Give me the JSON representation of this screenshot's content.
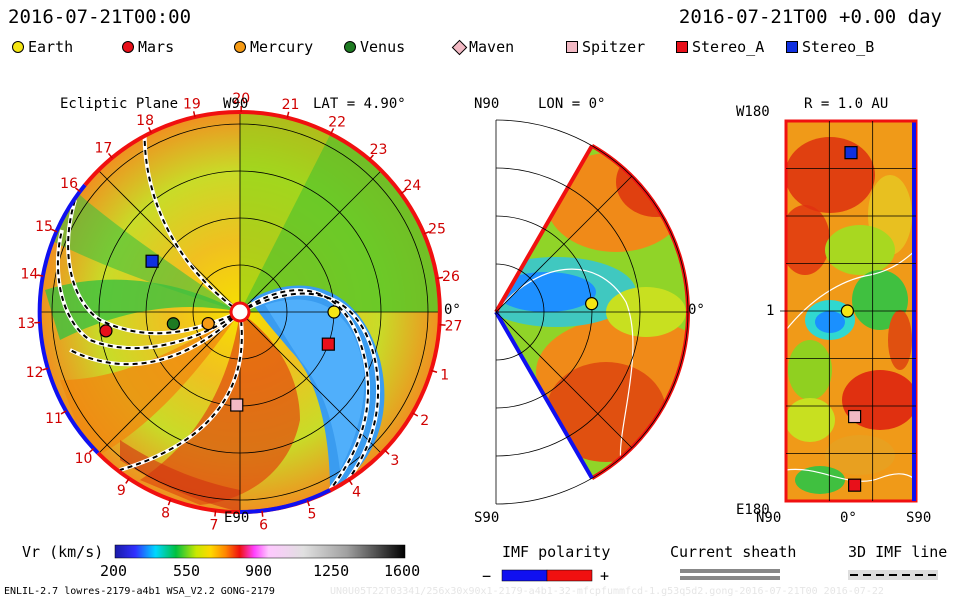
{
  "header": {
    "left_time": "2016-07-21T00:00",
    "right_time": "2016-07-21T00 +0.00 day"
  },
  "legend": [
    {
      "name": "Earth",
      "shape": "circle",
      "color": "#f5e614"
    },
    {
      "name": "Mars",
      "shape": "circle",
      "color": "#e8101a"
    },
    {
      "name": "Mercury",
      "shape": "circle",
      "color": "#f59a14"
    },
    {
      "name": "Venus",
      "shape": "circle",
      "color": "#1e7a22"
    },
    {
      "name": "Maven",
      "shape": "diamond",
      "color": "#f2b9c4"
    },
    {
      "name": "Spitzer",
      "shape": "square",
      "color": "#f2b9c4"
    },
    {
      "name": "Stereo_A",
      "shape": "square",
      "color": "#e8101a"
    },
    {
      "name": "Stereo_B",
      "shape": "square",
      "color": "#1030e0"
    }
  ],
  "panels": {
    "ecliptic": {
      "title": "Ecliptic Plane",
      "top_label": "W90",
      "bottom_label": "E90",
      "right_label": "0°",
      "lat_label": "LAT = 4.90°",
      "carrington_labels": [
        "19",
        "20",
        "21",
        "22",
        "23",
        "24",
        "25",
        "26",
        "27",
        "1",
        "2",
        "3",
        "4",
        "5",
        "6",
        "7",
        "8",
        "9",
        "10",
        "11",
        "12",
        "13",
        "14",
        "15",
        "16",
        "17",
        "18"
      ]
    },
    "meridional": {
      "top_label": "N90",
      "bottom_label": "S90",
      "right_label": "0°",
      "lon_label": "LON = 0°"
    },
    "map": {
      "r_label": "R = 1.0 AU",
      "top_left": "W180",
      "bottom_left": "E180",
      "left_mid": "1",
      "bottom_labels": [
        "N90",
        "0°",
        "S90"
      ]
    }
  },
  "colorbar": {
    "label": "Vr (km/s)",
    "ticks": [
      "200",
      "550",
      "900",
      "1250",
      "1600"
    ]
  },
  "imf": {
    "label": "IMF polarity",
    "minus": "−",
    "plus": "+",
    "neg_color": "#1010f0",
    "pos_color": "#f01010"
  },
  "current_sheath": {
    "label": "Current sheath"
  },
  "imf_line": {
    "label": "3D IMF line"
  },
  "footer": {
    "left": "ENLIL-2.7 lowres-2179-a4b1 WSA_V2.2 GONG-2179",
    "right": "UN0U05T22T03341/256x30x90x1-2179-a4b1-32-mfcpfummfcd-1.g53q5d2.gong-2016-07-21T00 2016-07-22"
  },
  "chart_data": [
    {
      "type": "polar-contour",
      "title": "Ecliptic Plane",
      "variable": "Vr (km/s)",
      "range": [
        200,
        1600
      ],
      "radial_rings_au": [
        0.5,
        1.0,
        1.5,
        2.0
      ],
      "bodies": [
        {
          "name": "Earth",
          "r_au": 1.0,
          "lon_deg": 0
        },
        {
          "name": "Stereo_A",
          "r_au": 1.0,
          "lon_deg": -20
        },
        {
          "name": "Stereo_B",
          "r_au": 1.08,
          "lon_deg": 150
        },
        {
          "name": "Mars",
          "r_au": 1.44,
          "lon_deg": 188
        },
        {
          "name": "Venus",
          "r_au": 0.72,
          "lon_deg": 190
        },
        {
          "name": "Mercury",
          "r_au": 0.36,
          "lon_deg": 200
        },
        {
          "name": "Spitzer",
          "r_au": 0.99,
          "lon_deg": 268
        }
      ]
    },
    {
      "type": "polar-contour",
      "title": "Meridional Plane",
      "variable": "Vr (km/s)",
      "range": [
        200,
        1600
      ],
      "latitude_range": [
        -60,
        60
      ],
      "bodies": [
        {
          "name": "Earth",
          "r_au": 1.0,
          "lat_deg": 5
        }
      ]
    },
    {
      "type": "heatmap",
      "title": "R = 1.0 AU",
      "variable": "Vr (km/s)",
      "range": [
        200,
        1600
      ],
      "x_axis": "latitude (N90 → S90)",
      "y_axis": "longitude (W180 → E180)",
      "bodies": [
        {
          "name": "Stereo_B",
          "lat_deg": 0,
          "lon_deg": 150
        },
        {
          "name": "Earth",
          "lat_deg": 5,
          "lon_deg": 0
        },
        {
          "name": "Spitzer",
          "lat_deg": -5,
          "lon_deg": -100
        },
        {
          "name": "Stereo_A",
          "lat_deg": -5,
          "lon_deg": -165
        }
      ]
    }
  ]
}
